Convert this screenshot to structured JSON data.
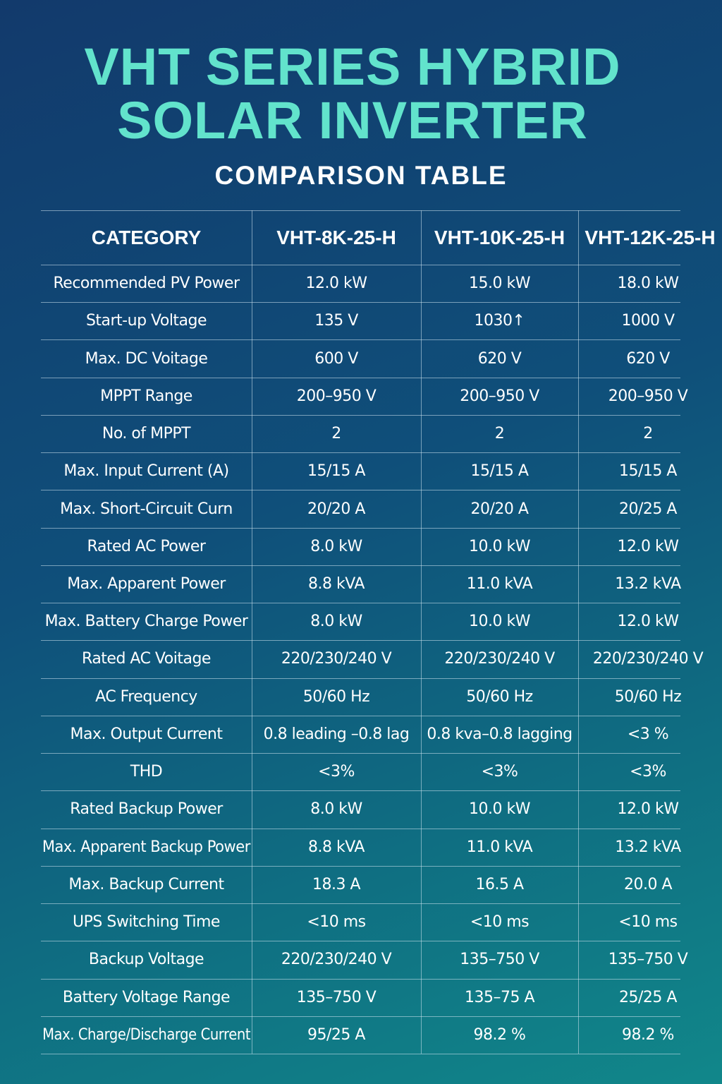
{
  "header": {
    "title_lines": [
      "VHT SERIES HYBRID",
      "SOLAR INVERTER"
    ],
    "subtitle": "COMPARISON TABLE"
  },
  "table": {
    "columns": [
      "CATEGORY",
      "VHT-8K-25-H",
      "VHT-10K-25-H",
      "VHT-12K-25-H"
    ],
    "rows": [
      [
        "Recommended PV Power",
        "12.0 kW",
        "15.0 kW",
        "18.0 kW"
      ],
      [
        "Start-up Voltage",
        "135 V",
        "1030↑",
        "1000 V"
      ],
      [
        "Max. DC Voitage",
        "600 V",
        "620 V",
        "620 V"
      ],
      [
        "MPPT Range",
        "200–950 V",
        "200–950 V",
        "200–950 V"
      ],
      [
        "No. of MPPT",
        "2",
        "2",
        "2"
      ],
      [
        "Max. Input Current (A)",
        "15/15 A",
        "15/15 A",
        "15/15 A"
      ],
      [
        "Max. Short-Circuit Curn",
        "20/20 A",
        "20/20 A",
        "20/25 A"
      ],
      [
        "Rated AC Power",
        "8.0 kW",
        "10.0 kW",
        "12.0 kW"
      ],
      [
        "Max. Apparent Power",
        "8.8 kVA",
        "11.0 kVA",
        "13.2 kVA"
      ],
      [
        "Max. Battery Charge Power",
        "8.0 kW",
        "10.0 kW",
        "12.0 kW"
      ],
      [
        "Rated AC Voitage",
        "220/230/240 V",
        "220/230/240 V",
        "220/230/240 V"
      ],
      [
        "AC Frequency",
        "50/60 Hz",
        "50/60 Hz",
        "50/60 Hz"
      ],
      [
        "Max. Output Current",
        "0.8 leading –0.8 lag",
        "0.8 kva–0.8 lagging",
        "<3 %"
      ],
      [
        "THD",
        "<3%",
        "<3%",
        "<3%"
      ],
      [
        "Rated Backup Power",
        "8.0 kW",
        "10.0 kW",
        "12.0 kW"
      ],
      [
        "Max. Apparent Backup Power",
        "8.8 kVA",
        "11.0 kVA",
        "13.2 kVA"
      ],
      [
        "Max. Backup Current",
        "18.3 A",
        "16.5 A",
        "20.0 A"
      ],
      [
        "UPS Switching Time",
        "<10 ms",
        "<10 ms",
        "<10 ms"
      ],
      [
        "Backup Voltage",
        "220/230/240 V",
        "135–750 V",
        "135–750 V"
      ],
      [
        "Battery Voltage Range",
        "135–750 V",
        "135–75 A",
        "25/25 A"
      ],
      [
        "Max. Charge/Discharge Current",
        "95/25 A",
        "98.2 %",
        "98.2 %"
      ]
    ]
  }
}
